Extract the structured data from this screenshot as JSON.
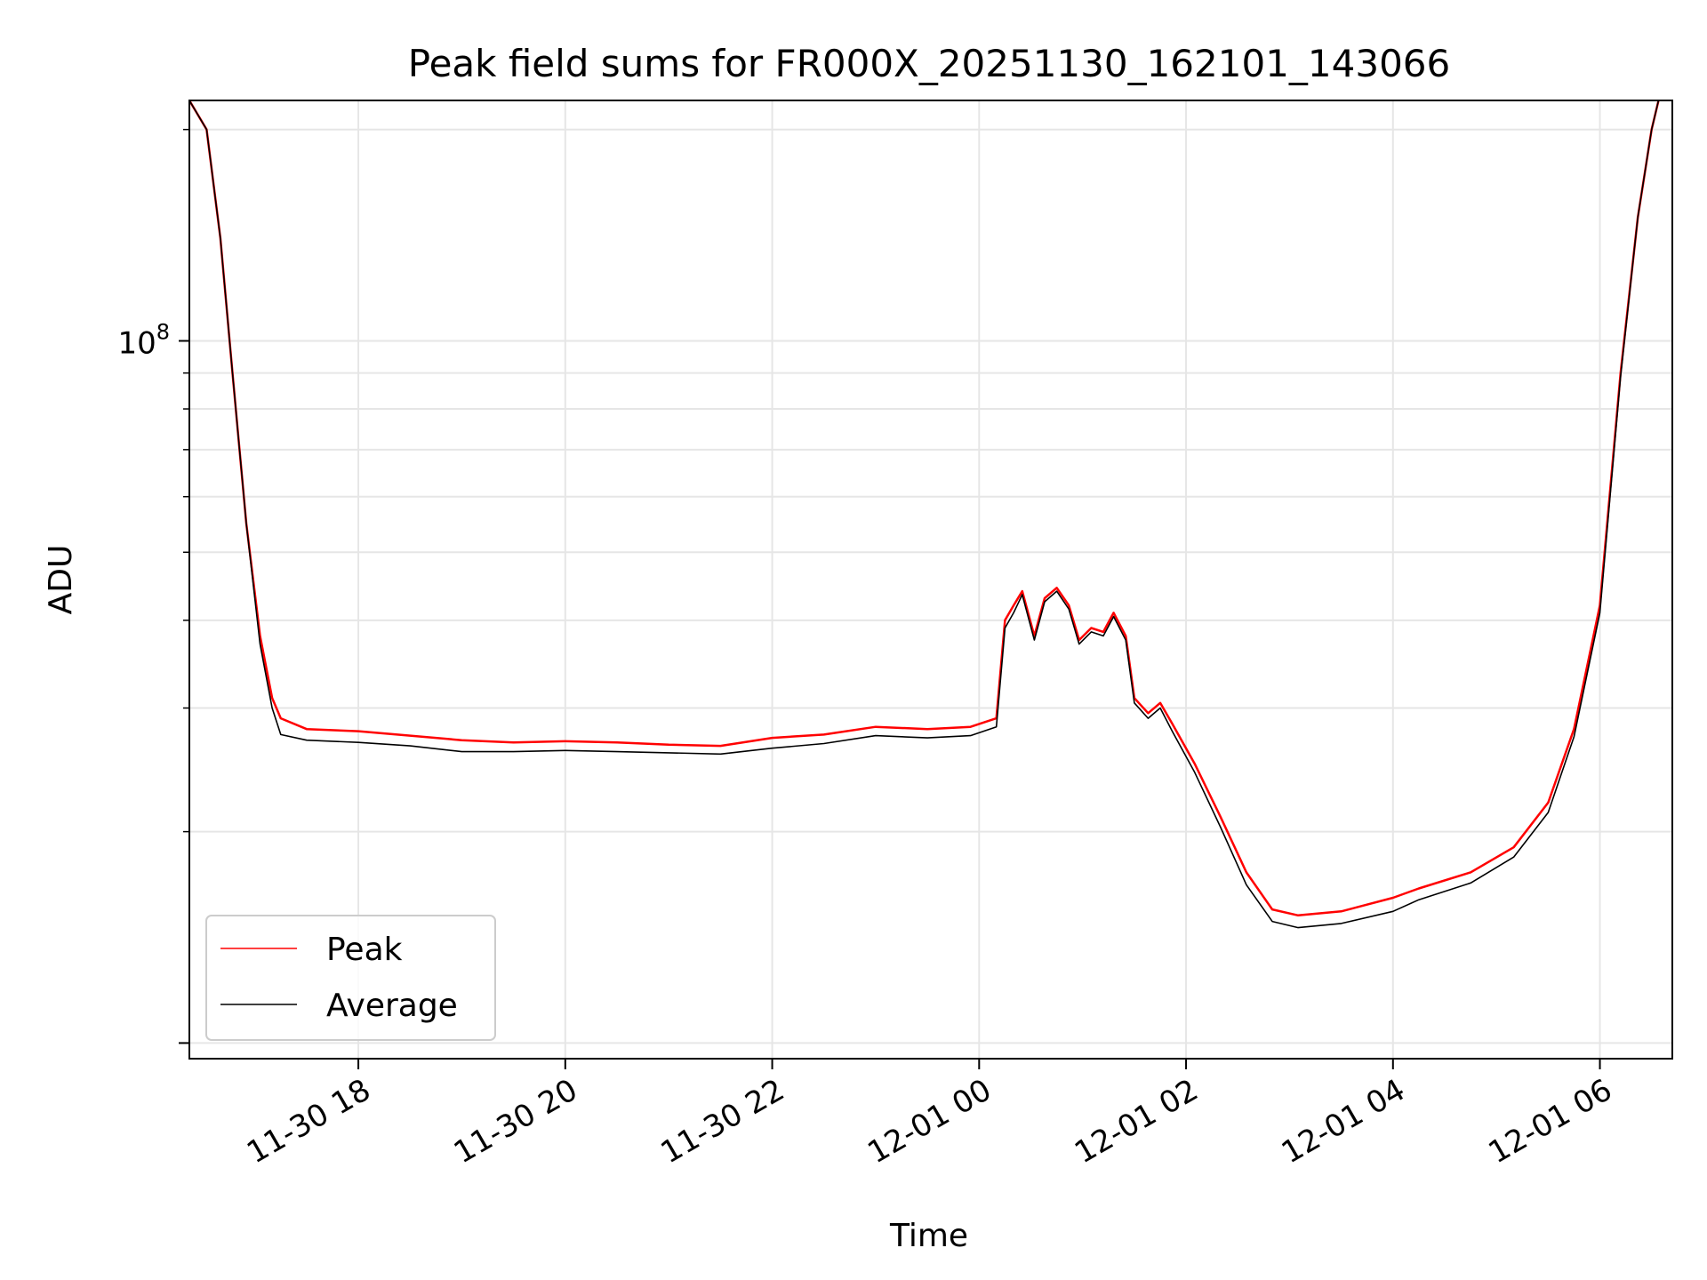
{
  "chart_data": {
    "type": "line",
    "title": "Peak field sums for FR000X_20251130_162101_143066",
    "xlabel": "Time",
    "ylabel": "ADU",
    "y_scale": "log",
    "xlim": [
      "2025-11-30T16:22",
      "2025-12-01T06:42"
    ],
    "ylim": [
      9500000,
      220000000
    ],
    "x_ticks": [
      "11-30 18",
      "11-30 20",
      "11-30 22",
      "12-01 00",
      "12-01 02",
      "12-01 04",
      "12-01 06"
    ],
    "y_tick_labels": [
      {
        "value": 100000000,
        "base": "10",
        "exponent": "8"
      }
    ],
    "grid": true,
    "legend_position": "lower-left",
    "series": [
      {
        "name": "Peak",
        "color": "#ff0000",
        "points": [
          [
            "2025-11-30T16:22",
            220000000
          ],
          [
            "2025-11-30T16:32",
            200000000
          ],
          [
            "2025-11-30T16:40",
            140000000
          ],
          [
            "2025-11-30T16:47",
            90000000
          ],
          [
            "2025-11-30T16:55",
            55000000
          ],
          [
            "2025-11-30T17:03",
            38000000
          ],
          [
            "2025-11-30T17:10",
            31000000
          ],
          [
            "2025-11-30T17:15",
            29000000
          ],
          [
            "2025-11-30T17:30",
            28000000
          ],
          [
            "2025-11-30T18:00",
            27800000
          ],
          [
            "2025-11-30T18:30",
            27400000
          ],
          [
            "2025-11-30T19:00",
            27000000
          ],
          [
            "2025-11-30T19:30",
            26800000
          ],
          [
            "2025-11-30T20:00",
            26900000
          ],
          [
            "2025-11-30T20:30",
            26800000
          ],
          [
            "2025-11-30T21:00",
            26600000
          ],
          [
            "2025-11-30T21:30",
            26500000
          ],
          [
            "2025-11-30T22:00",
            27200000
          ],
          [
            "2025-11-30T22:30",
            27500000
          ],
          [
            "2025-11-30T23:00",
            28200000
          ],
          [
            "2025-11-30T23:30",
            28000000
          ],
          [
            "2025-11-30T23:55",
            28200000
          ],
          [
            "2025-12-01T00:10",
            29000000
          ],
          [
            "2025-12-01T00:15",
            40000000
          ],
          [
            "2025-12-01T00:20",
            42000000
          ],
          [
            "2025-12-01T00:25",
            44000000
          ],
          [
            "2025-12-01T00:32",
            38000000
          ],
          [
            "2025-12-01T00:38",
            43000000
          ],
          [
            "2025-12-01T00:45",
            44500000
          ],
          [
            "2025-12-01T00:52",
            42000000
          ],
          [
            "2025-12-01T00:58",
            37500000
          ],
          [
            "2025-12-01T01:05",
            39000000
          ],
          [
            "2025-12-01T01:12",
            38500000
          ],
          [
            "2025-12-01T01:18",
            41000000
          ],
          [
            "2025-12-01T01:25",
            38000000
          ],
          [
            "2025-12-01T01:30",
            31000000
          ],
          [
            "2025-12-01T01:38",
            29500000
          ],
          [
            "2025-12-01T01:45",
            30500000
          ],
          [
            "2025-12-01T01:52",
            28500000
          ],
          [
            "2025-12-01T02:05",
            25000000
          ],
          [
            "2025-12-01T02:20",
            21000000
          ],
          [
            "2025-12-01T02:35",
            17500000
          ],
          [
            "2025-12-01T02:50",
            15500000
          ],
          [
            "2025-12-01T03:05",
            15200000
          ],
          [
            "2025-12-01T03:30",
            15400000
          ],
          [
            "2025-12-01T04:00",
            16100000
          ],
          [
            "2025-12-01T04:15",
            16600000
          ],
          [
            "2025-12-01T04:45",
            17500000
          ],
          [
            "2025-12-01T05:10",
            19000000
          ],
          [
            "2025-12-01T05:30",
            22000000
          ],
          [
            "2025-12-01T05:45",
            28000000
          ],
          [
            "2025-12-01T06:00",
            42000000
          ],
          [
            "2025-12-01T06:12",
            90000000
          ],
          [
            "2025-12-01T06:22",
            150000000
          ],
          [
            "2025-12-01T06:30",
            200000000
          ],
          [
            "2025-12-01T06:34",
            220000000
          ]
        ]
      },
      {
        "name": "Average",
        "color": "#000000",
        "points": [
          [
            "2025-11-30T16:22",
            220000000
          ],
          [
            "2025-11-30T16:32",
            200000000
          ],
          [
            "2025-11-30T16:40",
            140000000
          ],
          [
            "2025-11-30T16:47",
            90000000
          ],
          [
            "2025-11-30T16:55",
            55000000
          ],
          [
            "2025-11-30T17:03",
            37000000
          ],
          [
            "2025-11-30T17:10",
            30000000
          ],
          [
            "2025-11-30T17:15",
            27500000
          ],
          [
            "2025-11-30T17:30",
            27000000
          ],
          [
            "2025-11-30T18:00",
            26800000
          ],
          [
            "2025-11-30T18:30",
            26500000
          ],
          [
            "2025-11-30T19:00",
            26000000
          ],
          [
            "2025-11-30T19:30",
            26000000
          ],
          [
            "2025-11-30T20:00",
            26100000
          ],
          [
            "2025-11-30T20:30",
            26000000
          ],
          [
            "2025-11-30T21:00",
            25900000
          ],
          [
            "2025-11-30T21:30",
            25800000
          ],
          [
            "2025-11-30T22:00",
            26300000
          ],
          [
            "2025-11-30T22:30",
            26700000
          ],
          [
            "2025-11-30T23:00",
            27400000
          ],
          [
            "2025-11-30T23:30",
            27200000
          ],
          [
            "2025-11-30T23:55",
            27400000
          ],
          [
            "2025-12-01T00:10",
            28200000
          ],
          [
            "2025-12-01T00:15",
            39000000
          ],
          [
            "2025-12-01T00:20",
            41000000
          ],
          [
            "2025-12-01T00:25",
            43500000
          ],
          [
            "2025-12-01T00:32",
            37500000
          ],
          [
            "2025-12-01T00:38",
            42500000
          ],
          [
            "2025-12-01T00:45",
            44000000
          ],
          [
            "2025-12-01T00:52",
            41500000
          ],
          [
            "2025-12-01T00:58",
            37000000
          ],
          [
            "2025-12-01T01:05",
            38500000
          ],
          [
            "2025-12-01T01:12",
            38000000
          ],
          [
            "2025-12-01T01:18",
            40500000
          ],
          [
            "2025-12-01T01:25",
            37500000
          ],
          [
            "2025-12-01T01:30",
            30500000
          ],
          [
            "2025-12-01T01:38",
            29000000
          ],
          [
            "2025-12-01T01:45",
            30000000
          ],
          [
            "2025-12-01T01:52",
            27800000
          ],
          [
            "2025-12-01T02:05",
            24300000
          ],
          [
            "2025-12-01T02:20",
            20300000
          ],
          [
            "2025-12-01T02:35",
            16800000
          ],
          [
            "2025-12-01T02:50",
            14900000
          ],
          [
            "2025-12-01T03:05",
            14600000
          ],
          [
            "2025-12-01T03:30",
            14800000
          ],
          [
            "2025-12-01T04:00",
            15400000
          ],
          [
            "2025-12-01T04:15",
            16000000
          ],
          [
            "2025-12-01T04:45",
            16900000
          ],
          [
            "2025-12-01T05:10",
            18400000
          ],
          [
            "2025-12-01T05:30",
            21300000
          ],
          [
            "2025-12-01T05:45",
            27300000
          ],
          [
            "2025-12-01T06:00",
            41000000
          ],
          [
            "2025-12-01T06:12",
            89000000
          ],
          [
            "2025-12-01T06:22",
            150000000
          ],
          [
            "2025-12-01T06:30",
            200000000
          ],
          [
            "2025-12-01T06:34",
            220000000
          ]
        ]
      }
    ]
  }
}
